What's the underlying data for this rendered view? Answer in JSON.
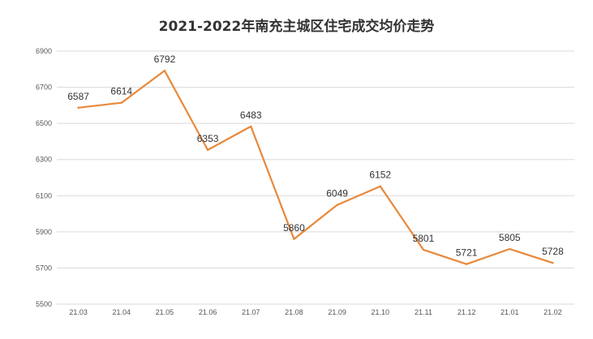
{
  "chart_data": {
    "type": "line",
    "title": "2021-2022年南充主城区住宅成交均价走势",
    "xlabel": "",
    "ylabel": "",
    "categories": [
      "21.03",
      "21.04",
      "21.05",
      "21.06",
      "21.07",
      "21.08",
      "21.09",
      "21.10",
      "21.11",
      "21.12",
      "21.01",
      "21.02"
    ],
    "series": [
      {
        "values": [
          6587,
          6614,
          6792,
          6353,
          6483,
          5860,
          6049,
          6152,
          5801,
          5721,
          5805,
          5728
        ],
        "color": "#e8883a"
      }
    ],
    "ylim": [
      5500,
      6900
    ],
    "yticks": [
      5500,
      5700,
      5900,
      6100,
      6300,
      6500,
      6700,
      6900
    ],
    "grid": true,
    "legend": "none",
    "data_labels": true
  }
}
